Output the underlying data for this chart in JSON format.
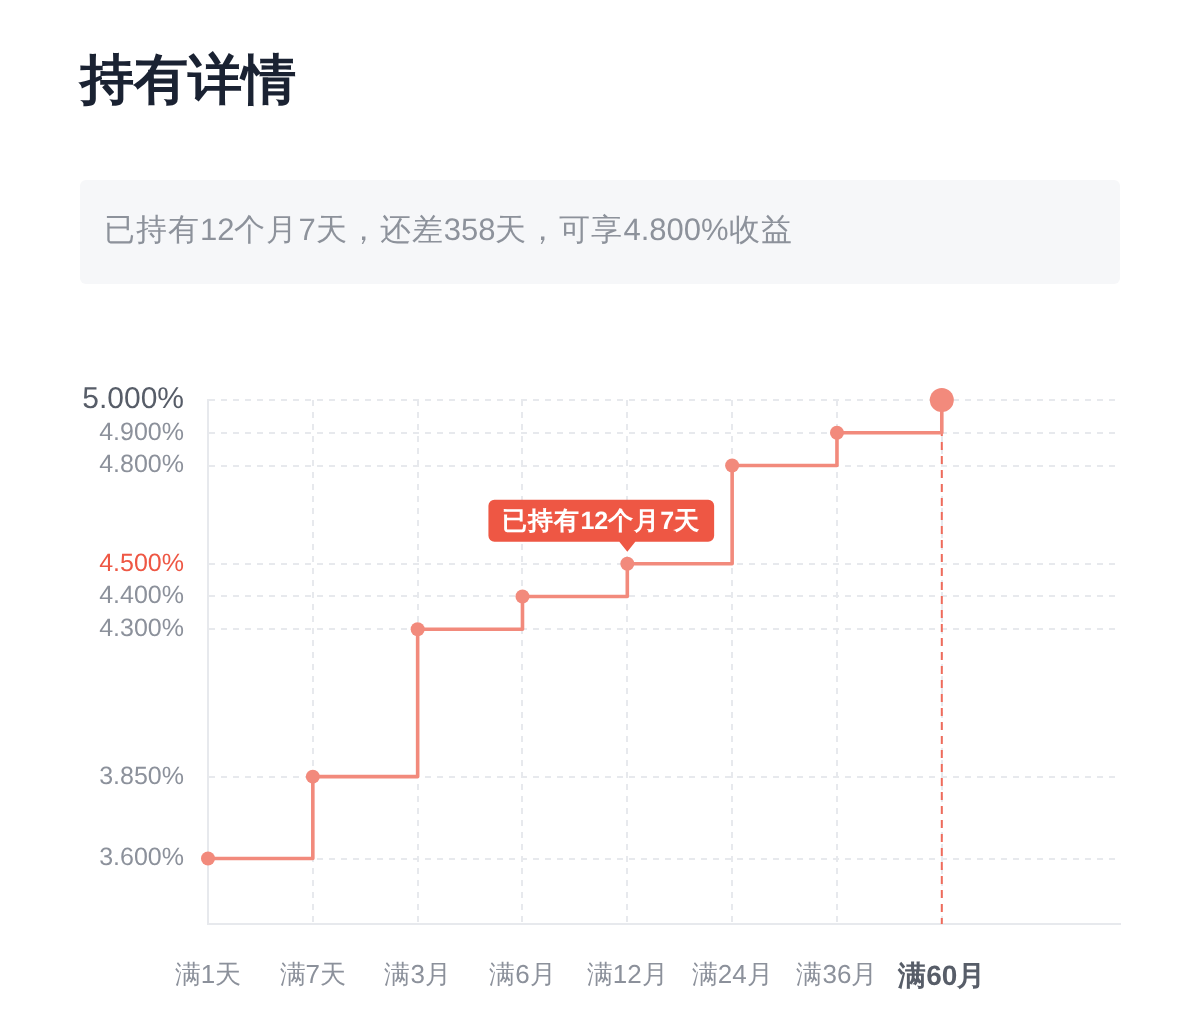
{
  "chart_data": {
    "type": "step",
    "title": "持有详情",
    "subtitle": "已持有12个月7天，还差358天，可享4.800%收益",
    "categories": [
      "满1天",
      "满7天",
      "满3月",
      "满6月",
      "满12月",
      "满24月",
      "满36月",
      "满60月"
    ],
    "values": [
      3.6,
      3.85,
      4.3,
      4.4,
      4.5,
      4.8,
      4.9,
      5
    ],
    "color": "#f28a7c",
    "ylim": [
      3.4,
      5
    ],
    "yticks": [
      {
        "value": 3.6,
        "label": "3.600%"
      },
      {
        "value": 3.85,
        "label": "3.850%"
      },
      {
        "value": 4.3,
        "label": "4.300%"
      },
      {
        "value": 4.4,
        "label": "4.400%"
      },
      {
        "value": 4.5,
        "label": "4.500%"
      },
      {
        "value": 4.8,
        "label": "4.800%"
      },
      {
        "value": 4.9,
        "label": "4.900%"
      },
      {
        "value": 5,
        "label": "5.000%"
      }
    ],
    "grid": true,
    "marker": "circle",
    "line_style": "solid",
    "ref_lines": [
      {
        "axis": "x",
        "value": "满60月",
        "color": "#ef6b5b",
        "line_style": "dashed"
      }
    ],
    "annotations": [
      {
        "text": "已持有12个月7天",
        "x": "满12月",
        "y": 4.5
      }
    ]
  }
}
